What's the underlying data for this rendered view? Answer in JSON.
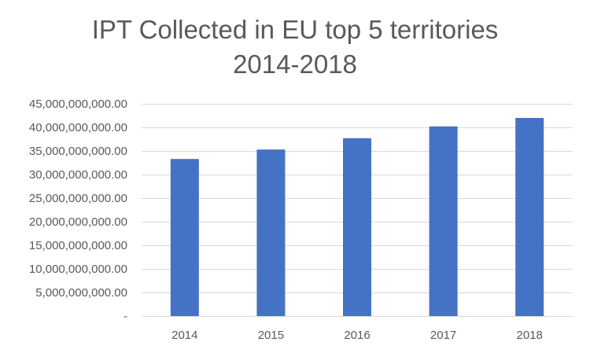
{
  "chart_data": {
    "type": "bar",
    "title_lines": [
      "IPT Collected in EU top 5 territories",
      "2014-2018"
    ],
    "categories": [
      "2014",
      "2015",
      "2016",
      "2017",
      "2018"
    ],
    "series": [
      {
        "name": "IPT Collected",
        "values": [
          33300000000,
          35300000000,
          37700000000,
          40200000000,
          42000000000
        ]
      }
    ],
    "ylim": [
      0,
      45000000000
    ],
    "y_tick_values": [
      0,
      5000000000,
      10000000000,
      15000000000,
      20000000000,
      25000000000,
      30000000000,
      35000000000,
      40000000000,
      45000000000
    ],
    "y_tick_labels": [
      "-",
      "5,000,000,000.00",
      "10,000,000,000.00",
      "15,000,000,000.00",
      "20,000,000,000.00",
      "25,000,000,000.00",
      "30,000,000,000.00",
      "35,000,000,000.00",
      "40,000,000,000.00",
      "45,000,000,000.00"
    ],
    "xlabel": "",
    "ylabel": "",
    "grid": true,
    "legend": "none",
    "colors": {
      "bar": "#4472c4",
      "grid": "#d9d9d9",
      "text": "#595959"
    }
  }
}
